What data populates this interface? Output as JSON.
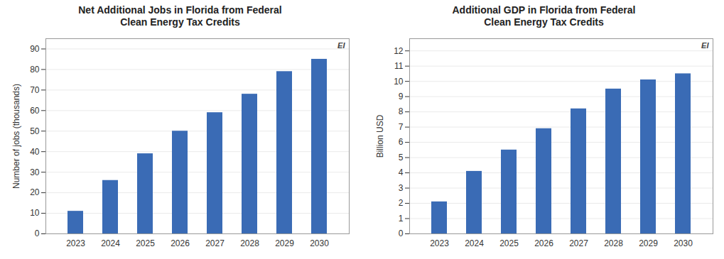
{
  "chart_data": [
    {
      "type": "bar",
      "title": "Net Additional Jobs in Florida from Federal\nClean Energy Tax Credits",
      "y_label": "Number of jobs (thousands)",
      "categories": [
        "2023",
        "2024",
        "2025",
        "2026",
        "2027",
        "2028",
        "2029",
        "2030"
      ],
      "values": [
        11,
        26,
        39,
        50,
        59,
        68,
        79,
        85
      ],
      "color": "#3A6BB5",
      "ylim": [
        0,
        95
      ],
      "yticks": [
        0,
        10,
        20,
        30,
        40,
        50,
        60,
        70,
        80,
        90
      ],
      "grid": true,
      "annotation": "EI"
    },
    {
      "type": "bar",
      "title": "Additional GDP in Florida from Federal\nClean Energy Tax Credits",
      "y_label": "Billion USD",
      "categories": [
        "2023",
        "2024",
        "2025",
        "2026",
        "2027",
        "2028",
        "2029",
        "2030"
      ],
      "values": [
        2.1,
        4.1,
        5.5,
        6.9,
        8.2,
        9.5,
        10.1,
        10.5
      ],
      "color": "#3A6BB5",
      "ylim": [
        0,
        12.8
      ],
      "yticks": [
        0,
        1,
        2,
        3,
        4,
        5,
        6,
        7,
        8,
        9,
        10,
        11,
        12
      ],
      "grid": true,
      "annotation": "EI"
    }
  ]
}
